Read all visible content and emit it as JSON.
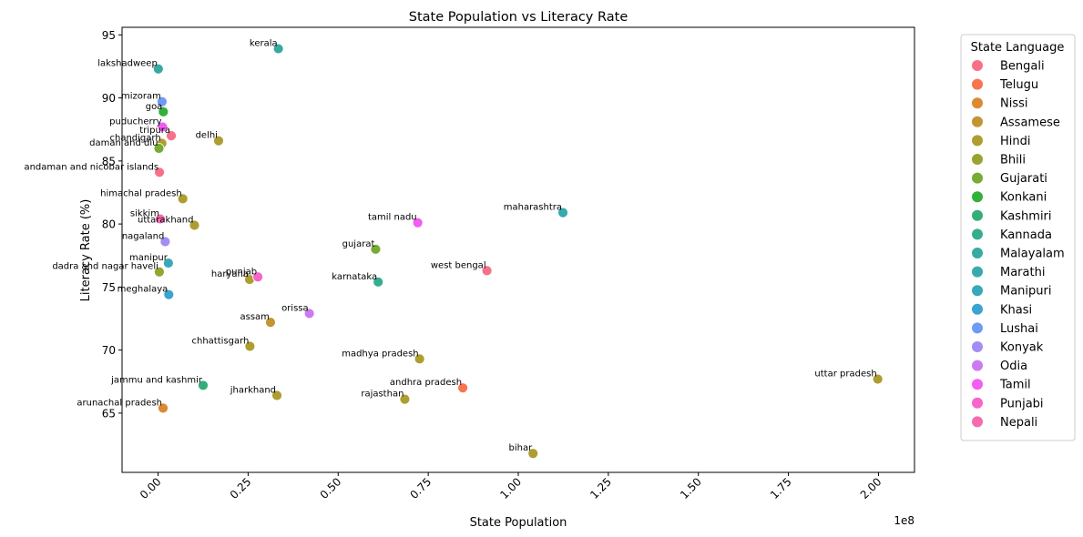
{
  "chart_data": {
    "type": "scatter",
    "title": "State Population vs Literacy Rate",
    "xlabel": "State Population",
    "ylabel": "Literacy Rate (%)",
    "x_offset_label": "1e8",
    "xlim": [
      -10000000,
      210000000
    ],
    "ylim": [
      60.3,
      95.6
    ],
    "x_ticks": [
      0,
      25000000,
      50000000,
      75000000,
      100000000,
      125000000,
      150000000,
      175000000,
      200000000
    ],
    "x_tick_labels": [
      "0.00",
      "0.25",
      "0.50",
      "0.75",
      "1.00",
      "1.25",
      "1.50",
      "1.75",
      "2.00"
    ],
    "y_ticks": [
      65,
      70,
      75,
      80,
      85,
      90,
      95
    ],
    "y_tick_labels": [
      "65",
      "70",
      "75",
      "80",
      "85",
      "90",
      "95"
    ],
    "grid": false,
    "legend": {
      "title": "State Language",
      "placement": "outside-right",
      "entries": [
        {
          "name": "Bengali",
          "color": "#f77189"
        },
        {
          "name": "Telugu",
          "color": "#f7754f"
        },
        {
          "name": "Nissi",
          "color": "#dc8932"
        },
        {
          "name": "Assamese",
          "color": "#c39532"
        },
        {
          "name": "Hindi",
          "color": "#ae9d31"
        },
        {
          "name": "Bhili",
          "color": "#97a431"
        },
        {
          "name": "Gujarati",
          "color": "#77ab31"
        },
        {
          "name": "Konkani",
          "color": "#33b039"
        },
        {
          "name": "Kashmiri",
          "color": "#34ae78"
        },
        {
          "name": "Kannada",
          "color": "#36ad8f"
        },
        {
          "name": "Malayalam",
          "color": "#37aba0"
        },
        {
          "name": "Marathi",
          "color": "#38aaac"
        },
        {
          "name": "Manipuri",
          "color": "#3aa8bc"
        },
        {
          "name": "Khasi",
          "color": "#3ba3d2"
        },
        {
          "name": "Lushai",
          "color": "#6e9bf4"
        },
        {
          "name": "Konyak",
          "color": "#a48cf4"
        },
        {
          "name": "Odia",
          "color": "#cc7af4"
        },
        {
          "name": "Tamil",
          "color": "#f45cf2"
        },
        {
          "name": "Punjabi",
          "color": "#f565cc"
        },
        {
          "name": "Nepali",
          "color": "#f66bad"
        }
      ]
    },
    "points": [
      {
        "state": "kerala",
        "language": "Malayalam",
        "x": 33400000,
        "y": 93.9
      },
      {
        "state": "lakshadweep",
        "language": "Malayalam",
        "x": 64000,
        "y": 92.3
      },
      {
        "state": "mizoram",
        "language": "Lushai",
        "x": 1100000,
        "y": 89.7
      },
      {
        "state": "goa",
        "language": "Konkani",
        "x": 1460000,
        "y": 88.9
      },
      {
        "state": "puducherry",
        "language": "Tamil",
        "x": 1250000,
        "y": 87.7
      },
      {
        "state": "tripura",
        "language": "Bengali",
        "x": 3670000,
        "y": 87.0
      },
      {
        "state": "chandigarh",
        "language": "Hindi",
        "x": 1050000,
        "y": 86.4
      },
      {
        "state": "daman and diu",
        "language": "Gujarati",
        "x": 240000,
        "y": 86.0
      },
      {
        "state": "delhi",
        "language": "Hindi",
        "x": 16800000,
        "y": 86.6
      },
      {
        "state": "andaman and nicobar islands",
        "language": "Bengali",
        "x": 380000,
        "y": 84.1
      },
      {
        "state": "himachal pradesh",
        "language": "Hindi",
        "x": 6860000,
        "y": 82.0
      },
      {
        "state": "sikkim",
        "language": "Nepali",
        "x": 610000,
        "y": 80.4
      },
      {
        "state": "uttarakhand",
        "language": "Hindi",
        "x": 10100000,
        "y": 79.9
      },
      {
        "state": "nagaland",
        "language": "Konyak",
        "x": 1980000,
        "y": 78.6
      },
      {
        "state": "maharashtra",
        "language": "Marathi",
        "x": 112400000,
        "y": 80.9
      },
      {
        "state": "tamil nadu",
        "language": "Tamil",
        "x": 72100000,
        "y": 80.1
      },
      {
        "state": "dadra and nagar haveli",
        "language": "Bhili",
        "x": 340000,
        "y": 76.2
      },
      {
        "state": "manipur",
        "language": "Manipuri",
        "x": 2860000,
        "y": 76.9
      },
      {
        "state": "gujarat",
        "language": "Gujarati",
        "x": 60400000,
        "y": 78.0
      },
      {
        "state": "haryana",
        "language": "Hindi",
        "x": 25400000,
        "y": 75.6
      },
      {
        "state": "punjab",
        "language": "Punjabi",
        "x": 27700000,
        "y": 75.8
      },
      {
        "state": "west bengal",
        "language": "Bengali",
        "x": 91300000,
        "y": 76.3
      },
      {
        "state": "karnataka",
        "language": "Kannada",
        "x": 61100000,
        "y": 75.4
      },
      {
        "state": "meghalaya",
        "language": "Khasi",
        "x": 2970000,
        "y": 74.4
      },
      {
        "state": "assam",
        "language": "Assamese",
        "x": 31200000,
        "y": 72.2
      },
      {
        "state": "orissa",
        "language": "Odia",
        "x": 42000000,
        "y": 72.9
      },
      {
        "state": "madhya pradesh",
        "language": "Hindi",
        "x": 72600000,
        "y": 69.3
      },
      {
        "state": "uttar pradesh",
        "language": "Hindi",
        "x": 199800000,
        "y": 67.7
      },
      {
        "state": "chhattisgarh",
        "language": "Hindi",
        "x": 25500000,
        "y": 70.3
      },
      {
        "state": "jammu and kashmir",
        "language": "Kashmiri",
        "x": 12500000,
        "y": 67.2
      },
      {
        "state": "andhra pradesh",
        "language": "Telugu",
        "x": 84600000,
        "y": 67.0
      },
      {
        "state": "jharkhand",
        "language": "Hindi",
        "x": 33000000,
        "y": 66.4
      },
      {
        "state": "rajasthan",
        "language": "Hindi",
        "x": 68500000,
        "y": 66.1
      },
      {
        "state": "arunachal pradesh",
        "language": "Nissi",
        "x": 1380000,
        "y": 65.4
      },
      {
        "state": "bihar",
        "language": "Hindi",
        "x": 104100000,
        "y": 61.8
      }
    ]
  }
}
